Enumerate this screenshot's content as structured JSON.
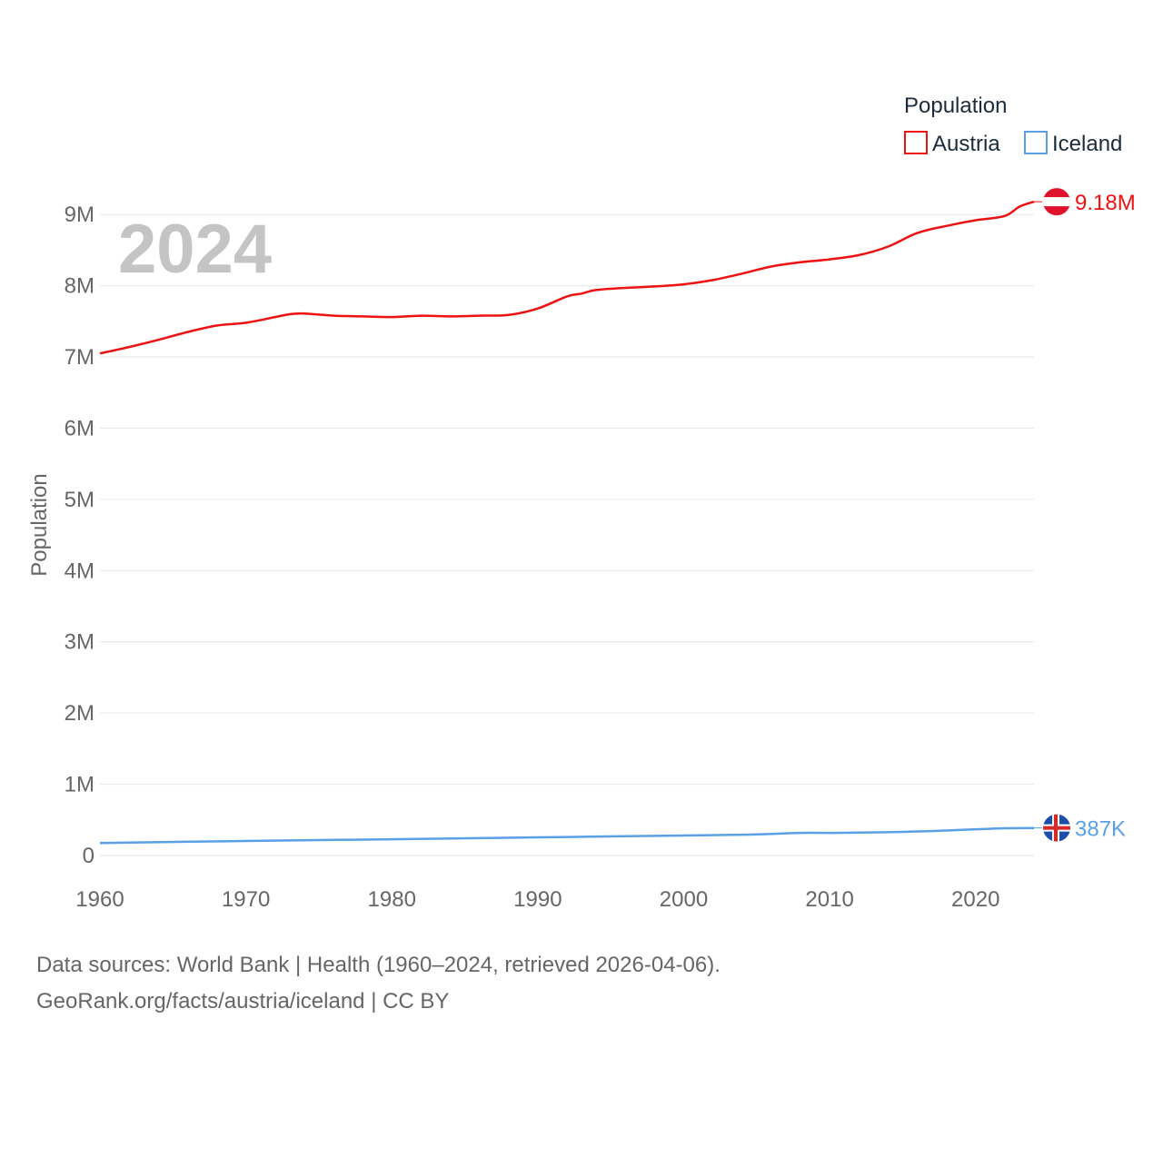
{
  "chart_data": {
    "type": "line",
    "big_year_label": "2024",
    "ylabel": "Population",
    "xlabel": "",
    "xlim": [
      1960,
      2024
    ],
    "ylim": [
      0,
      9500000
    ],
    "x_ticks": [
      1960,
      1970,
      1980,
      1990,
      2000,
      2010,
      2020
    ],
    "y_ticks": [
      {
        "value": 0,
        "label": "0"
      },
      {
        "value": 1000000,
        "label": "1M"
      },
      {
        "value": 2000000,
        "label": "2M"
      },
      {
        "value": 3000000,
        "label": "3M"
      },
      {
        "value": 4000000,
        "label": "4M"
      },
      {
        "value": 5000000,
        "label": "5M"
      },
      {
        "value": 6000000,
        "label": "6M"
      },
      {
        "value": 7000000,
        "label": "7M"
      },
      {
        "value": 8000000,
        "label": "8M"
      },
      {
        "value": 9000000,
        "label": "9M"
      }
    ],
    "legend": {
      "title": "Population",
      "position": "top-right",
      "items": [
        "Austria",
        "Iceland"
      ]
    },
    "series": [
      {
        "name": "Austria",
        "color": "#ee1111",
        "end_label": "9.18M",
        "flag": "austria-flag",
        "x": [
          1960,
          1962,
          1964,
          1966,
          1968,
          1970,
          1972,
          1973,
          1974,
          1976,
          1978,
          1980,
          1982,
          1984,
          1986,
          1988,
          1990,
          1992,
          1993,
          1994,
          1996,
          1998,
          2000,
          2002,
          2004,
          2006,
          2008,
          2010,
          2012,
          2014,
          2016,
          2018,
          2020,
          2022,
          2023,
          2024
        ],
        "values": [
          7050000,
          7140000,
          7240000,
          7350000,
          7440000,
          7480000,
          7560000,
          7600000,
          7610000,
          7580000,
          7570000,
          7560000,
          7580000,
          7570000,
          7580000,
          7590000,
          7680000,
          7850000,
          7890000,
          7940000,
          7970000,
          7990000,
          8020000,
          8080000,
          8170000,
          8270000,
          8330000,
          8370000,
          8430000,
          8550000,
          8740000,
          8840000,
          8920000,
          8980000,
          9110000,
          9180000
        ]
      },
      {
        "name": "Iceland",
        "color": "#5aa0e6",
        "end_label": "387K",
        "flag": "iceland-flag",
        "x": [
          1960,
          1970,
          1980,
          1990,
          2000,
          2005,
          2008,
          2010,
          2015,
          2020,
          2022,
          2024
        ],
        "values": [
          176000,
          204000,
          228000,
          255000,
          281000,
          296000,
          318000,
          318000,
          331000,
          368000,
          383000,
          387000
        ]
      }
    ]
  },
  "footer": {
    "line1": "Data sources: World Bank | Health (1960–2024, retrieved 2026-04-06).",
    "line2": "GeoRank.org/facts/austria/iceland | CC BY"
  }
}
